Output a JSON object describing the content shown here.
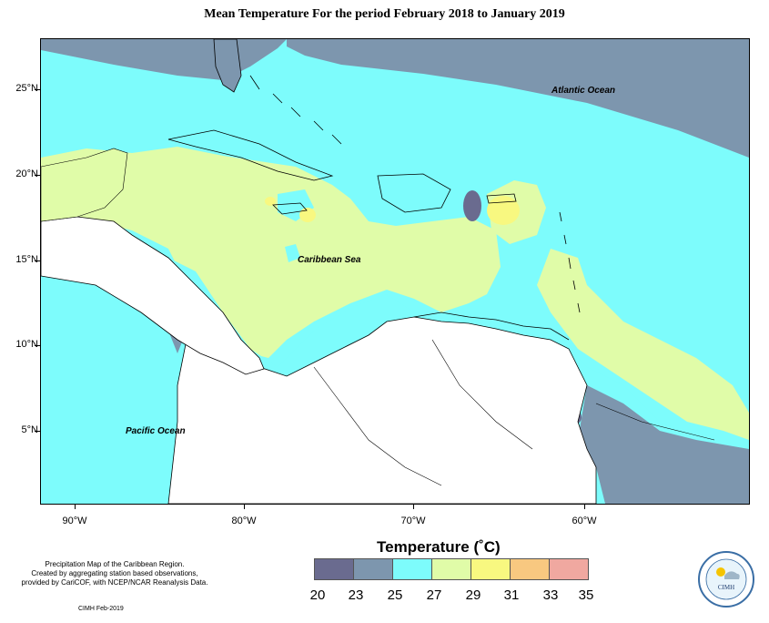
{
  "title": "Mean Temperature For the period February 2018 to January 2019",
  "labels": {
    "atlantic": "Atlantic Ocean",
    "caribbean": "Caribbean Sea",
    "pacific": "Pacific Ocean"
  },
  "axes": {
    "y_ticks": [
      "25°N",
      "20°N",
      "15°N",
      "10°N",
      "5°N"
    ],
    "x_ticks": [
      "90°W",
      "80°W",
      "70°W",
      "60°W"
    ]
  },
  "legend": {
    "title": "Temperature (˚C)",
    "bins": [
      "20",
      "23",
      "25",
      "27",
      "29",
      "31",
      "33",
      "35"
    ],
    "colors": [
      "#6a6b8f",
      "#7d96ae",
      "#7dfcfc",
      "#e0fca8",
      "#f8f880",
      "#f8c880",
      "#f0a8a0"
    ]
  },
  "notes": {
    "line1": "Precipitation Map of the Caribbean Region.",
    "line2": "Created by aggregating station based observations,",
    "line3": "provided by CariCOF, with NCEP/NCAR Reanalysis Data.",
    "credit": "CIMH Feb-2019",
    "logo_text": "CIMH"
  },
  "colors": {
    "land": "#ffffff",
    "cool_blue": "#7d96ae",
    "cyan": "#7dfcfc",
    "light_green": "#e0fca8",
    "yellow": "#f8f880",
    "dark_purple": "#6a6b8f"
  }
}
